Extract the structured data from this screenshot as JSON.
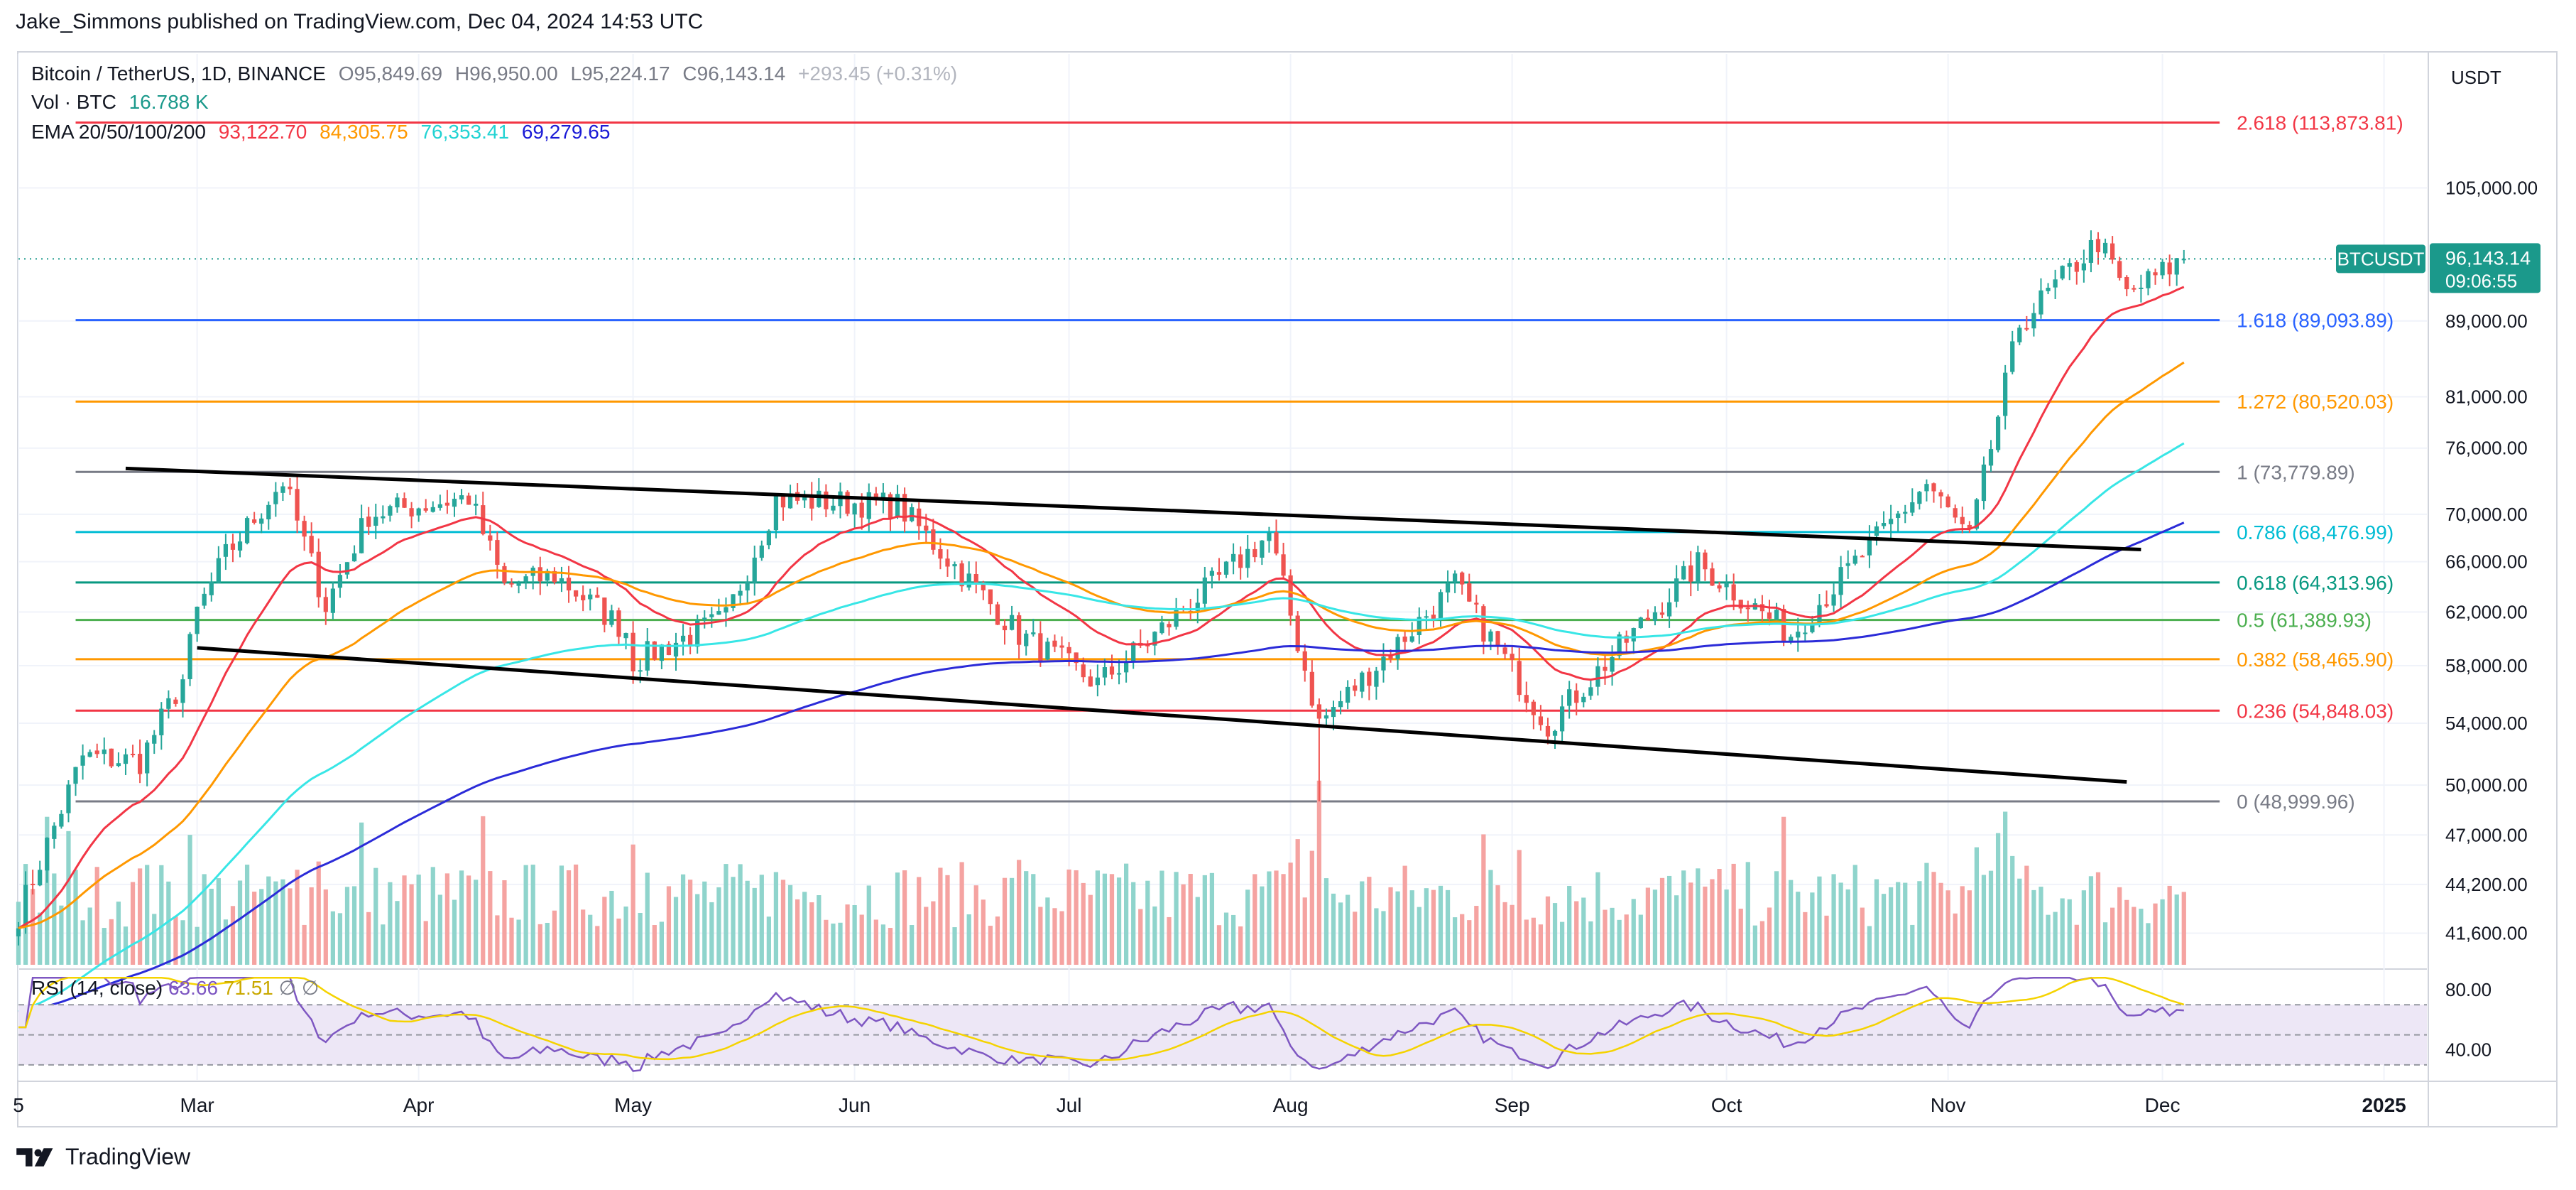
{
  "header": {
    "published": "Jake_Simmons published on TradingView.com, Dec 04, 2024 14:53 UTC"
  },
  "footer": {
    "brand": "TradingView"
  },
  "legend": {
    "symbol": "Bitcoin / TetherUS, 1D, BINANCE",
    "open_label": "O",
    "open": "95,849.69",
    "high_label": "H",
    "high": "96,950.00",
    "low_label": "L",
    "low": "95,224.17",
    "close_label": "C",
    "close": "96,143.14",
    "change": "+293.45 (+0.31%)",
    "vol_label": "Vol · BTC",
    "vol": "16.788 K",
    "ema_label": "EMA 20/50/100/200",
    "ema20": "93,122.70",
    "ema50": "84,305.75",
    "ema100": "76,353.41",
    "ema200": "69,279.65",
    "rsi_label": "RSI (14, close)",
    "rsi_value": "63.66",
    "rsi_extra": "71.51",
    "rsi_na": "∅"
  },
  "colors": {
    "up": "#26a69a",
    "down": "#ef5350",
    "vol_up": "#8fd4cc",
    "vol_down": "#f5a3a1",
    "ema20": "#f23645",
    "ema50": "#ff9800",
    "ema100": "#38e6e6",
    "ema200": "#2b2bd8",
    "rsi_line": "#7e57c2",
    "rsi_ma": "#f5d300",
    "rsi_band": "#ede7f6",
    "price_tag": "#1b998b",
    "dotted": "#1b998b",
    "trendline": "#000000"
  },
  "chart_data": {
    "type": "candlestick",
    "title": "Bitcoin / TetherUS, 1D, BINANCE",
    "price_axis_label": "USDT",
    "y_ticks": [
      "105,000.00",
      "89,000.00",
      "81,000.00",
      "76,000.00",
      "70,000.00",
      "66,000.00",
      "62,000.00",
      "58,000.00",
      "54,000.00",
      "50,000.00",
      "47,000.00",
      "44,200.00",
      "41,600.00"
    ],
    "y_tick_values": [
      105000,
      89000,
      81000,
      76000,
      70000,
      66000,
      62000,
      58000,
      54000,
      50000,
      47000,
      44200,
      41600
    ],
    "x_ticks": [
      "5",
      "Mar",
      "Apr",
      "May",
      "Jun",
      "Jul",
      "Aug",
      "Sep",
      "Oct",
      "Nov",
      "Dec",
      "2025"
    ],
    "x_tick_dates": [
      "2024-02-05",
      "2024-03-01",
      "2024-04-01",
      "2024-05-01",
      "2024-06-01",
      "2024-07-01",
      "2024-08-01",
      "2024-09-01",
      "2024-10-01",
      "2024-11-01",
      "2024-12-01",
      "2025-01-01"
    ],
    "x_range": [
      "2024-02-05",
      "2025-01-07"
    ],
    "log_scale": true,
    "ylim": [
      40000,
      124000
    ],
    "last_price": {
      "label": "BTCUSDT",
      "value": "96,143.14",
      "countdown": "09:06:55"
    },
    "fibonacci": [
      {
        "ratio": "2.618",
        "value": 113873.81,
        "text": "2.618 (113,873.81)",
        "color": "#f23645"
      },
      {
        "ratio": "1.618",
        "value": 89093.89,
        "text": "1.618 (89,093.89)",
        "color": "#2962ff"
      },
      {
        "ratio": "1.272",
        "value": 80520.03,
        "text": "1.272 (80,520.03)",
        "color": "#ff9800"
      },
      {
        "ratio": "1",
        "value": 73779.89,
        "text": "1 (73,779.89)",
        "color": "#787b86"
      },
      {
        "ratio": "0.786",
        "value": 68476.99,
        "text": "0.786 (68,476.99)",
        "color": "#00bcd4"
      },
      {
        "ratio": "0.618",
        "value": 64313.96,
        "text": "0.618 (64,313.96)",
        "color": "#089981"
      },
      {
        "ratio": "0.5",
        "value": 61389.93,
        "text": "0.5 (61,389.93)",
        "color": "#4caf50"
      },
      {
        "ratio": "0.382",
        "value": 58465.9,
        "text": "0.382 (58,465.90)",
        "color": "#ff9800"
      },
      {
        "ratio": "0.236",
        "value": 54848.03,
        "text": "0.236 (54,848.03)",
        "color": "#f23645"
      },
      {
        "ratio": "0",
        "value": 48999.96,
        "text": "0 (48,999.96)",
        "color": "#787b86"
      }
    ],
    "trendlines": [
      {
        "name": "channel-upper",
        "from": [
          "2024-02-20",
          74100
        ],
        "to": [
          "2024-11-28",
          67000
        ]
      },
      {
        "name": "channel-lower",
        "from": [
          "2024-03-01",
          59300
        ],
        "to": [
          "2024-11-26",
          50200
        ]
      }
    ],
    "key_prices": [
      [
        "2024-02-05",
        42600
      ],
      [
        "2024-02-14",
        51800
      ],
      [
        "2024-02-22",
        51500
      ],
      [
        "2024-02-28",
        57000
      ],
      [
        "2024-03-01",
        62000
      ],
      [
        "2024-03-05",
        66500
      ],
      [
        "2024-03-13",
        73000
      ],
      [
        "2024-03-19",
        62500
      ],
      [
        "2024-03-25",
        70000
      ],
      [
        "2024-04-08",
        71500
      ],
      [
        "2024-04-13",
        64000
      ],
      [
        "2024-04-20",
        64900
      ],
      [
        "2024-04-30",
        60600
      ],
      [
        "2024-05-01",
        58300
      ],
      [
        "2024-05-14",
        61500
      ],
      [
        "2024-05-21",
        71300
      ],
      [
        "2024-06-07",
        70800
      ],
      [
        "2024-06-24",
        60300
      ],
      [
        "2024-07-05",
        56700
      ],
      [
        "2024-07-14",
        60700
      ],
      [
        "2024-07-29",
        68300
      ],
      [
        "2024-08-05",
        54000
      ],
      [
        "2024-08-24",
        64100
      ],
      [
        "2024-09-06",
        53900
      ],
      [
        "2024-09-27",
        65800
      ],
      [
        "2024-10-10",
        60300
      ],
      [
        "2024-10-29",
        72700
      ],
      [
        "2024-11-04",
        67800
      ],
      [
        "2024-11-11",
        88700
      ],
      [
        "2024-11-22",
        98300
      ],
      [
        "2024-11-26",
        91900
      ],
      [
        "2024-12-04",
        96143
      ]
    ],
    "rsi_ticks": [
      "80.00",
      "40.00"
    ],
    "rsi_range": [
      20,
      90
    ],
    "rsi_band": [
      70,
      30
    ],
    "grid": true
  }
}
